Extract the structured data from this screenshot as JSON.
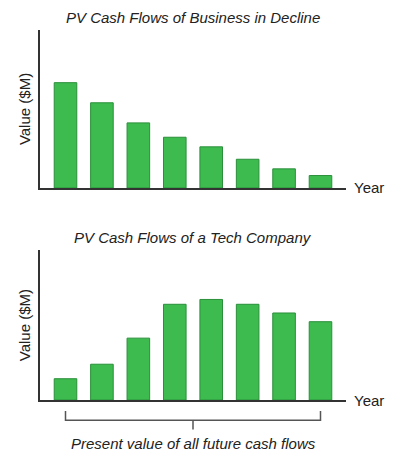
{
  "chart_data": [
    {
      "type": "bar",
      "title": "PV Cash Flows of Business in Decline",
      "x_label": "Year",
      "y_label": "Value ($M)",
      "categories": [
        null,
        null,
        null,
        null,
        null,
        null,
        null,
        null
      ],
      "values": [
        11.0,
        8.9,
        6.8,
        5.3,
        4.3,
        3.0,
        2.0,
        1.3
      ],
      "color": "#3dbb4f",
      "ylim": [
        0,
        16.5
      ],
      "grid": false,
      "tick_labels": false
    },
    {
      "type": "bar",
      "title": "PV Cash Flows of a Tech Company",
      "x_label": "Year",
      "y_label": "Value ($M)",
      "categories": [
        null,
        null,
        null,
        null,
        null,
        null,
        null,
        null
      ],
      "values": [
        2.2,
        3.7,
        6.4,
        9.9,
        10.4,
        9.9,
        9.0,
        8.1
      ],
      "color": "#3dbb4f",
      "ylim": [
        0,
        15.5
      ],
      "grid": false,
      "tick_labels": false,
      "annotation": "Present value of all future cash flows"
    }
  ]
}
